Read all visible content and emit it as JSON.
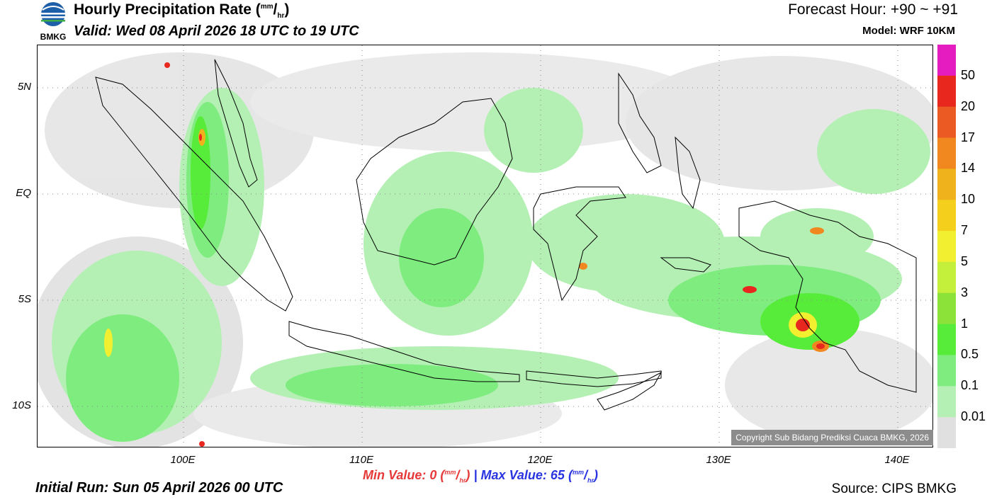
{
  "header": {
    "title_main": "Hourly Precipitation Rate (",
    "unit_num": "mm",
    "unit_sep": "/",
    "unit_den": "hr",
    "title_close": ")",
    "valid": "Valid: Wed 08 April 2026 18 UTC to 19 UTC",
    "forecast_hour": "Forecast Hour: +90 ~ +91",
    "model": "Model: WRF 10KM"
  },
  "logo": {
    "text": "BMKG",
    "icon": "bmkg-logo-icon"
  },
  "axes": {
    "lat_labels": [
      "5N",
      "EQ",
      "5S",
      "10S"
    ],
    "lon_labels": [
      "100E",
      "110E",
      "120E",
      "130E",
      "140E"
    ]
  },
  "colorbar": {
    "labels": [
      "50",
      "20",
      "17",
      "14",
      "10",
      "7",
      "5",
      "3",
      "1",
      "0.5",
      "0.1",
      "0.01"
    ],
    "colors": [
      "#e51cc0",
      "#e8281e",
      "#ec5a24",
      "#f0881f",
      "#f0b21c",
      "#f4cf1c",
      "#f2ef30",
      "#c4ef3a",
      "#8de23a",
      "#58ec3a",
      "#7eec7e",
      "#b4f0b4",
      "#e0e0e0"
    ]
  },
  "stats": {
    "min_label": "Min Value:",
    "min_value": "0",
    "max_label": "Max Value:",
    "max_value": "65",
    "separator": "|"
  },
  "footer": {
    "initial_run": "Initial Run: Sun 05 April 2026 00 UTC",
    "source": "Source: CIPS BMKG",
    "copyright": "Copyright Sub Bidang Prediksi Cuaca BMKG, 2026"
  }
}
